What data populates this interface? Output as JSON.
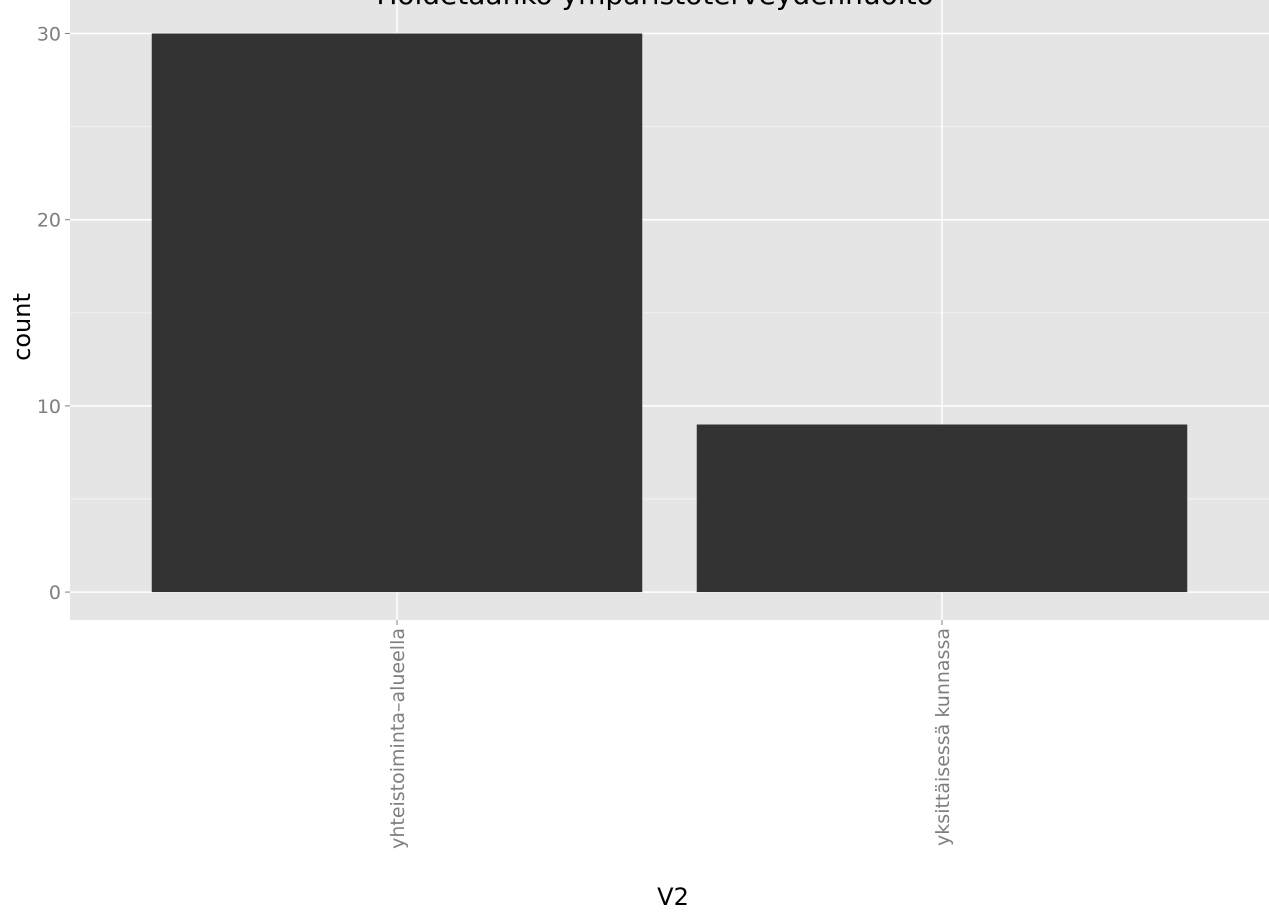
{
  "chart_data": {
    "type": "bar",
    "title": "Hoidetaanko ympäristöterveydenhuolto",
    "categories": [
      "yhteistoiminta–alueella",
      "yksittäisessä kunnassa"
    ],
    "values": [
      30,
      9
    ],
    "color": "#333333",
    "xlabel": "V2",
    "ylabel": "count",
    "ylim": [
      -1.5,
      31.8
    ],
    "yticks": [
      0,
      10,
      20,
      30
    ],
    "minor_yticks": [
      5,
      15,
      25
    ],
    "grid": true
  }
}
